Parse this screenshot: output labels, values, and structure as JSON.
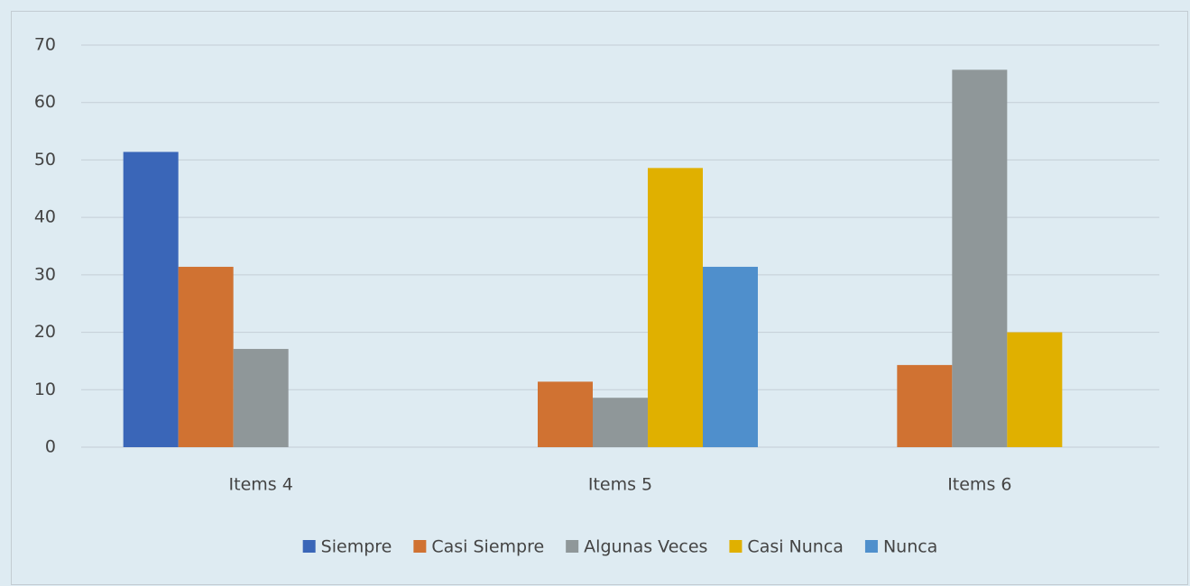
{
  "chart_data": {
    "type": "bar",
    "categories": [
      "Items 4",
      "Items 5",
      "Items 6"
    ],
    "series": [
      {
        "name": "Siempre",
        "color": "#3a66b8",
        "values": [
          51.4,
          0,
          0
        ]
      },
      {
        "name": "Casi Siempre",
        "color": "#d07232",
        "values": [
          31.4,
          11.4,
          14.3
        ]
      },
      {
        "name": "Algunas Veces",
        "color": "#8f9799",
        "values": [
          17.1,
          8.6,
          65.7
        ]
      },
      {
        "name": "Casi Nunca",
        "color": "#e0b000",
        "values": [
          0,
          48.6,
          20
        ]
      },
      {
        "name": "Nunca",
        "color": "#4f8fcc",
        "values": [
          0,
          31.4,
          0
        ]
      }
    ],
    "ylim": [
      0,
      70
    ],
    "yticks": [
      0,
      10,
      20,
      30,
      40,
      50,
      60,
      70
    ],
    "grid": true,
    "legend": "bottom"
  }
}
